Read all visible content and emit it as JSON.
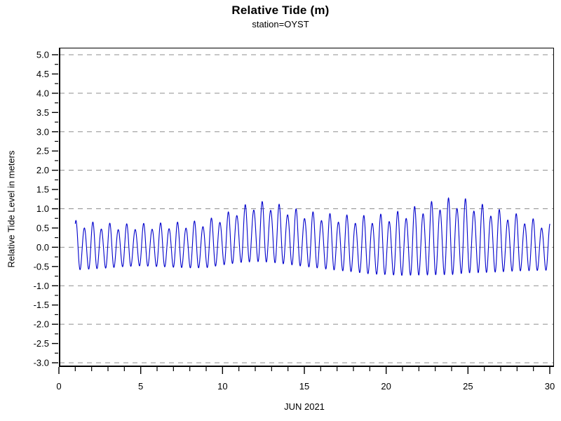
{
  "chart_data": {
    "type": "line",
    "title": "Relative Tide (m)",
    "subtitle": "station=OYST",
    "station": "OYST",
    "xlabel": "JUN 2021",
    "ylabel": "Relative Tide Level in meters",
    "xlim": [
      0,
      30
    ],
    "ylim": [
      -3.0,
      5.0
    ],
    "x_major_ticks": [
      {
        "v": 0,
        "label": "0"
      },
      {
        "v": 5,
        "label": "5"
      },
      {
        "v": 10,
        "label": "10"
      },
      {
        "v": 15,
        "label": "15"
      },
      {
        "v": 20,
        "label": "20"
      },
      {
        "v": 25,
        "label": "25"
      },
      {
        "v": 30,
        "label": "30"
      }
    ],
    "x_minor_step_days": 1,
    "y_major_ticks": [
      {
        "v": 5.0,
        "label": "5.0"
      },
      {
        "v": 4.5,
        "label": "4.5"
      },
      {
        "v": 4.0,
        "label": "4.0"
      },
      {
        "v": 3.5,
        "label": "3.5"
      },
      {
        "v": 3.0,
        "label": "3.0"
      },
      {
        "v": 2.5,
        "label": "2.5"
      },
      {
        "v": 2.0,
        "label": "2.0"
      },
      {
        "v": 1.5,
        "label": "1.5"
      },
      {
        "v": 1.0,
        "label": "1.0"
      },
      {
        "v": 0.5,
        "label": "0.5"
      },
      {
        "v": 0.0,
        "label": "0.0"
      },
      {
        "v": -0.5,
        "label": "-0.5"
      },
      {
        "v": -1.0,
        "label": "-1.0"
      },
      {
        "v": -1.5,
        "label": "-1.5"
      },
      {
        "v": -2.0,
        "label": "-2.0"
      },
      {
        "v": -2.5,
        "label": "-2.5"
      },
      {
        "v": -3.0,
        "label": "-3.0"
      }
    ],
    "y_minor_step": 0.25,
    "gridline_values": [
      5,
      4,
      3,
      2,
      1,
      0,
      -1,
      -2,
      -3
    ],
    "grid": {
      "style": "dashed",
      "color": "#8f8f8f"
    },
    "axes_color": "#000000",
    "legend": "none",
    "series": [
      {
        "name": "relative tide level",
        "units": "m",
        "color": "#0000cc",
        "time_start_day": 1,
        "time_end_day": 30,
        "sample_step_days": 0.0208333,
        "semidiurnal_period_days": 0.5175,
        "diurnal_period_days": 1.035,
        "diurnal_inequality": 0.15,
        "crest_reference_day": 1.04,
        "daily_higher_high_m": [
          0.7,
          0.66,
          0.63,
          0.61,
          0.62,
          0.63,
          0.65,
          0.67,
          0.72,
          0.85,
          1.05,
          1.2,
          1.18,
          1.05,
          0.95,
          0.9,
          0.86,
          0.83,
          0.83,
          0.88,
          0.96,
          1.1,
          1.22,
          1.3,
          1.26,
          1.1,
          0.97,
          0.87,
          0.74,
          0.62
        ],
        "daily_lower_low_m": [
          -0.68,
          -0.65,
          -0.62,
          -0.58,
          -0.56,
          -0.58,
          -0.6,
          -0.62,
          -0.62,
          -0.55,
          -0.5,
          -0.48,
          -0.5,
          -0.55,
          -0.6,
          -0.65,
          -0.7,
          -0.74,
          -0.8,
          -0.82,
          -0.85,
          -0.85,
          -0.85,
          -0.85,
          -0.8,
          -0.78,
          -0.75,
          -0.72,
          -0.7,
          -0.68
        ],
        "observed_max_m": 1.3,
        "observed_min_m": -0.85
      }
    ]
  }
}
